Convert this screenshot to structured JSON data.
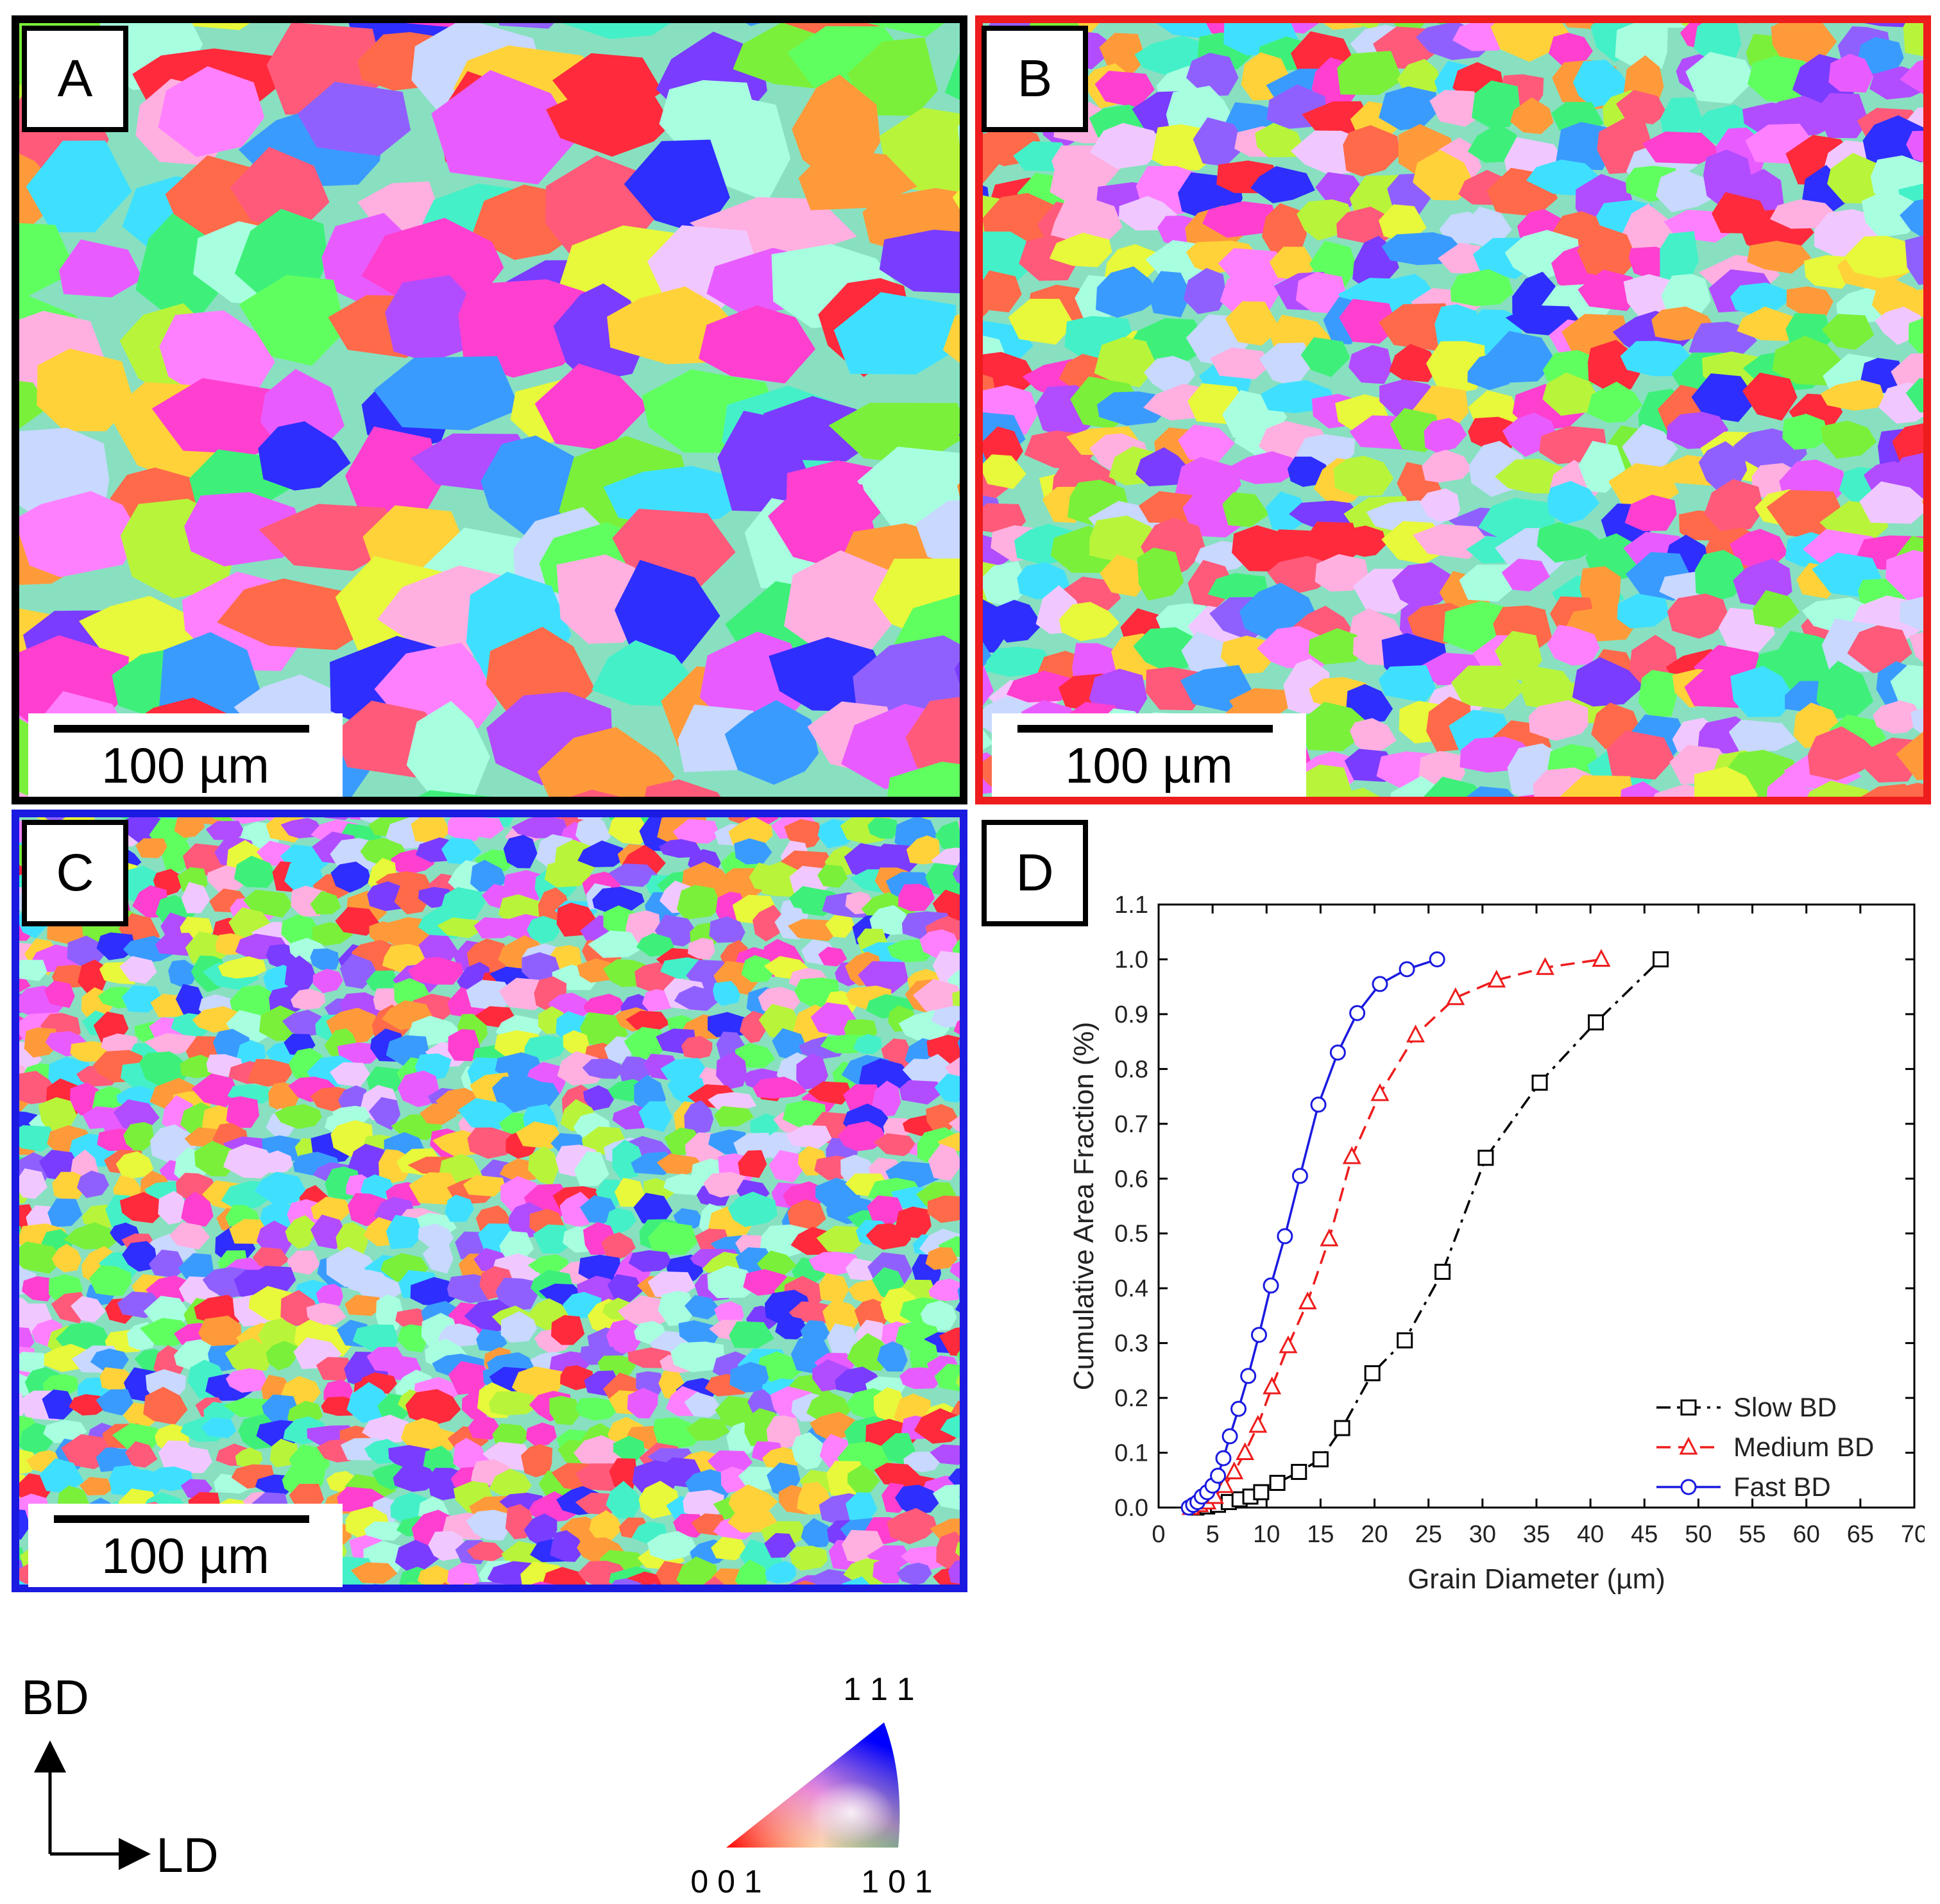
{
  "panels": {
    "a": {
      "label": "A",
      "scale_bar": "100 µm",
      "border_color": "#000000"
    },
    "b": {
      "label": "B",
      "scale_bar": "100 µm",
      "border_color": "#ee1c1c"
    },
    "c": {
      "label": "C",
      "scale_bar": "100 µm",
      "border_color": "#1a1ae0"
    },
    "d": {
      "label": "D"
    }
  },
  "orientation_key": {
    "vertical": "BD",
    "horizontal": "LD"
  },
  "ipf_key": {
    "top": "1 1 1",
    "bottom_left": "0 0 1",
    "bottom_right": "1 0 1"
  },
  "chart_data": {
    "type": "line",
    "title": "",
    "xlabel": "Grain Diameter (µm)",
    "ylabel": "Cumulative Area Fraction (%)",
    "xlim": [
      0,
      70
    ],
    "ylim": [
      0,
      1.1
    ],
    "xticks": [
      0,
      5,
      10,
      15,
      20,
      25,
      30,
      35,
      40,
      45,
      50,
      55,
      60,
      65,
      70
    ],
    "yticks": [
      0.0,
      0.1,
      0.2,
      0.3,
      0.4,
      0.5,
      0.6,
      0.7,
      0.8,
      0.9,
      1.0,
      1.1
    ],
    "legend_position": "bottom-right",
    "series": [
      {
        "name": "Slow BD",
        "color": "#000000",
        "marker": "square",
        "dash": "dashdot",
        "points": [
          [
            3.5,
            0.0
          ],
          [
            4.5,
            0.002
          ],
          [
            5.5,
            0.005
          ],
          [
            6.5,
            0.01
          ],
          [
            7.5,
            0.015
          ],
          [
            8.5,
            0.02
          ],
          [
            9.5,
            0.028
          ],
          [
            11,
            0.045
          ],
          [
            13,
            0.065
          ],
          [
            15,
            0.088
          ],
          [
            17,
            0.145
          ],
          [
            19.8,
            0.245
          ],
          [
            22.8,
            0.305
          ],
          [
            26.3,
            0.43
          ],
          [
            30.3,
            0.638
          ],
          [
            35.3,
            0.775
          ],
          [
            40.5,
            0.885
          ],
          [
            46.5,
            1.0
          ]
        ]
      },
      {
        "name": "Medium BD",
        "color": "#ee1c1c",
        "marker": "triangle",
        "dash": "dashed",
        "points": [
          [
            3.0,
            0.0
          ],
          [
            3.8,
            0.005
          ],
          [
            4.5,
            0.01
          ],
          [
            5.2,
            0.02
          ],
          [
            6.1,
            0.04
          ],
          [
            7.0,
            0.065
          ],
          [
            8.0,
            0.1
          ],
          [
            9.2,
            0.15
          ],
          [
            10.5,
            0.22
          ],
          [
            12.0,
            0.295
          ],
          [
            13.8,
            0.375
          ],
          [
            15.8,
            0.49
          ],
          [
            17.9,
            0.64
          ],
          [
            20.5,
            0.755
          ],
          [
            23.8,
            0.862
          ],
          [
            27.5,
            0.93
          ],
          [
            31.3,
            0.962
          ],
          [
            35.8,
            0.985
          ],
          [
            41.0,
            1.0
          ]
        ]
      },
      {
        "name": "Fast BD",
        "color": "#1a1ae0",
        "marker": "circle",
        "dash": "solid",
        "points": [
          [
            2.8,
            0.0
          ],
          [
            3.2,
            0.005
          ],
          [
            3.6,
            0.01
          ],
          [
            4.0,
            0.02
          ],
          [
            4.5,
            0.028
          ],
          [
            5.0,
            0.04
          ],
          [
            5.5,
            0.058
          ],
          [
            6.0,
            0.09
          ],
          [
            6.6,
            0.13
          ],
          [
            7.4,
            0.18
          ],
          [
            8.3,
            0.24
          ],
          [
            9.3,
            0.315
          ],
          [
            10.4,
            0.405
          ],
          [
            11.7,
            0.495
          ],
          [
            13.1,
            0.605
          ],
          [
            14.8,
            0.735
          ],
          [
            16.6,
            0.83
          ],
          [
            18.4,
            0.902
          ],
          [
            20.5,
            0.955
          ],
          [
            23.0,
            0.982
          ],
          [
            25.8,
            1.0
          ]
        ]
      }
    ]
  }
}
